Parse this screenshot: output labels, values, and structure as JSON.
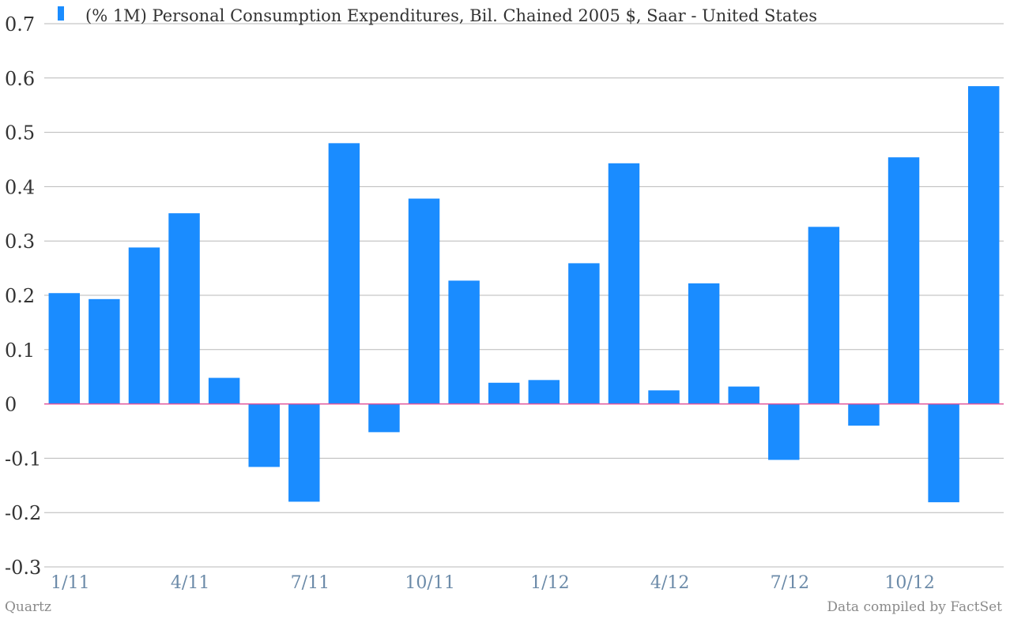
{
  "chart_data": {
    "type": "bar",
    "legend": {
      "position": "top-left"
    },
    "series": [
      {
        "name": "(% 1M) Personal Consumption Expenditures, Bil. Chained 2005 $, Saar - United States",
        "color": "#1a8cff",
        "values": [
          0.204,
          0.193,
          0.288,
          0.351,
          0.048,
          -0.116,
          -0.18,
          0.48,
          -0.052,
          0.378,
          0.227,
          0.039,
          0.044,
          0.259,
          0.443,
          0.025,
          0.222,
          0.032,
          -0.103,
          0.326,
          -0.04,
          0.454,
          -0.181,
          0.585
        ]
      }
    ],
    "x_tick_labels": [
      "1/11",
      "4/11",
      "7/11",
      "10/11",
      "1/12",
      "4/12",
      "7/12",
      "10/12"
    ],
    "x_tick_index": [
      0,
      3,
      6,
      9,
      12,
      15,
      18,
      21
    ],
    "y_ticks": [
      0.7,
      0.6,
      0.5,
      0.4,
      0.3,
      0.2,
      0.1,
      0,
      -0.1,
      -0.2,
      -0.3
    ],
    "ylim": [
      -0.3,
      0.7
    ],
    "grid": true,
    "zero_line_color": "#e0559b"
  },
  "footer": {
    "source_left": "Quartz",
    "source_right": "Data compiled by FactSet"
  }
}
